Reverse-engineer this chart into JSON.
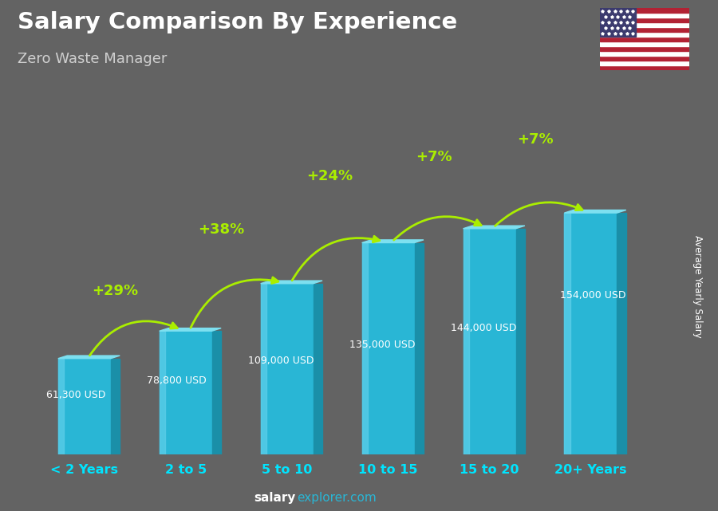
{
  "title": "Salary Comparison By Experience",
  "subtitle": "Zero Waste Manager",
  "categories": [
    "< 2 Years",
    "2 to 5",
    "5 to 10",
    "10 to 15",
    "15 to 20",
    "20+ Years"
  ],
  "values": [
    61300,
    78800,
    109000,
    135000,
    144000,
    154000
  ],
  "labels": [
    "61,300 USD",
    "78,800 USD",
    "109,000 USD",
    "135,000 USD",
    "144,000 USD",
    "154,000 USD"
  ],
  "pct_changes": [
    "+29%",
    "+38%",
    "+24%",
    "+7%",
    "+7%"
  ],
  "ylabel": "Average Yearly Salary",
  "footer_bold": "salary",
  "footer_normal": "explorer.com",
  "bg_color": "#636363",
  "header_color": "#4d4d4d",
  "bar_color_main": "#29b6d5",
  "bar_color_light": "#5ecfea",
  "bar_color_dark": "#1a8fa8",
  "bar_color_top": "#7de0f0",
  "title_color": "#ffffff",
  "subtitle_color": "#d0d0d0",
  "label_color": "#ffffff",
  "pct_color": "#aaee00",
  "xlabel_color": "#00e5ff",
  "ylabel_color": "#ffffff",
  "footer_white": "#ffffff",
  "footer_cyan": "#29b6d5"
}
